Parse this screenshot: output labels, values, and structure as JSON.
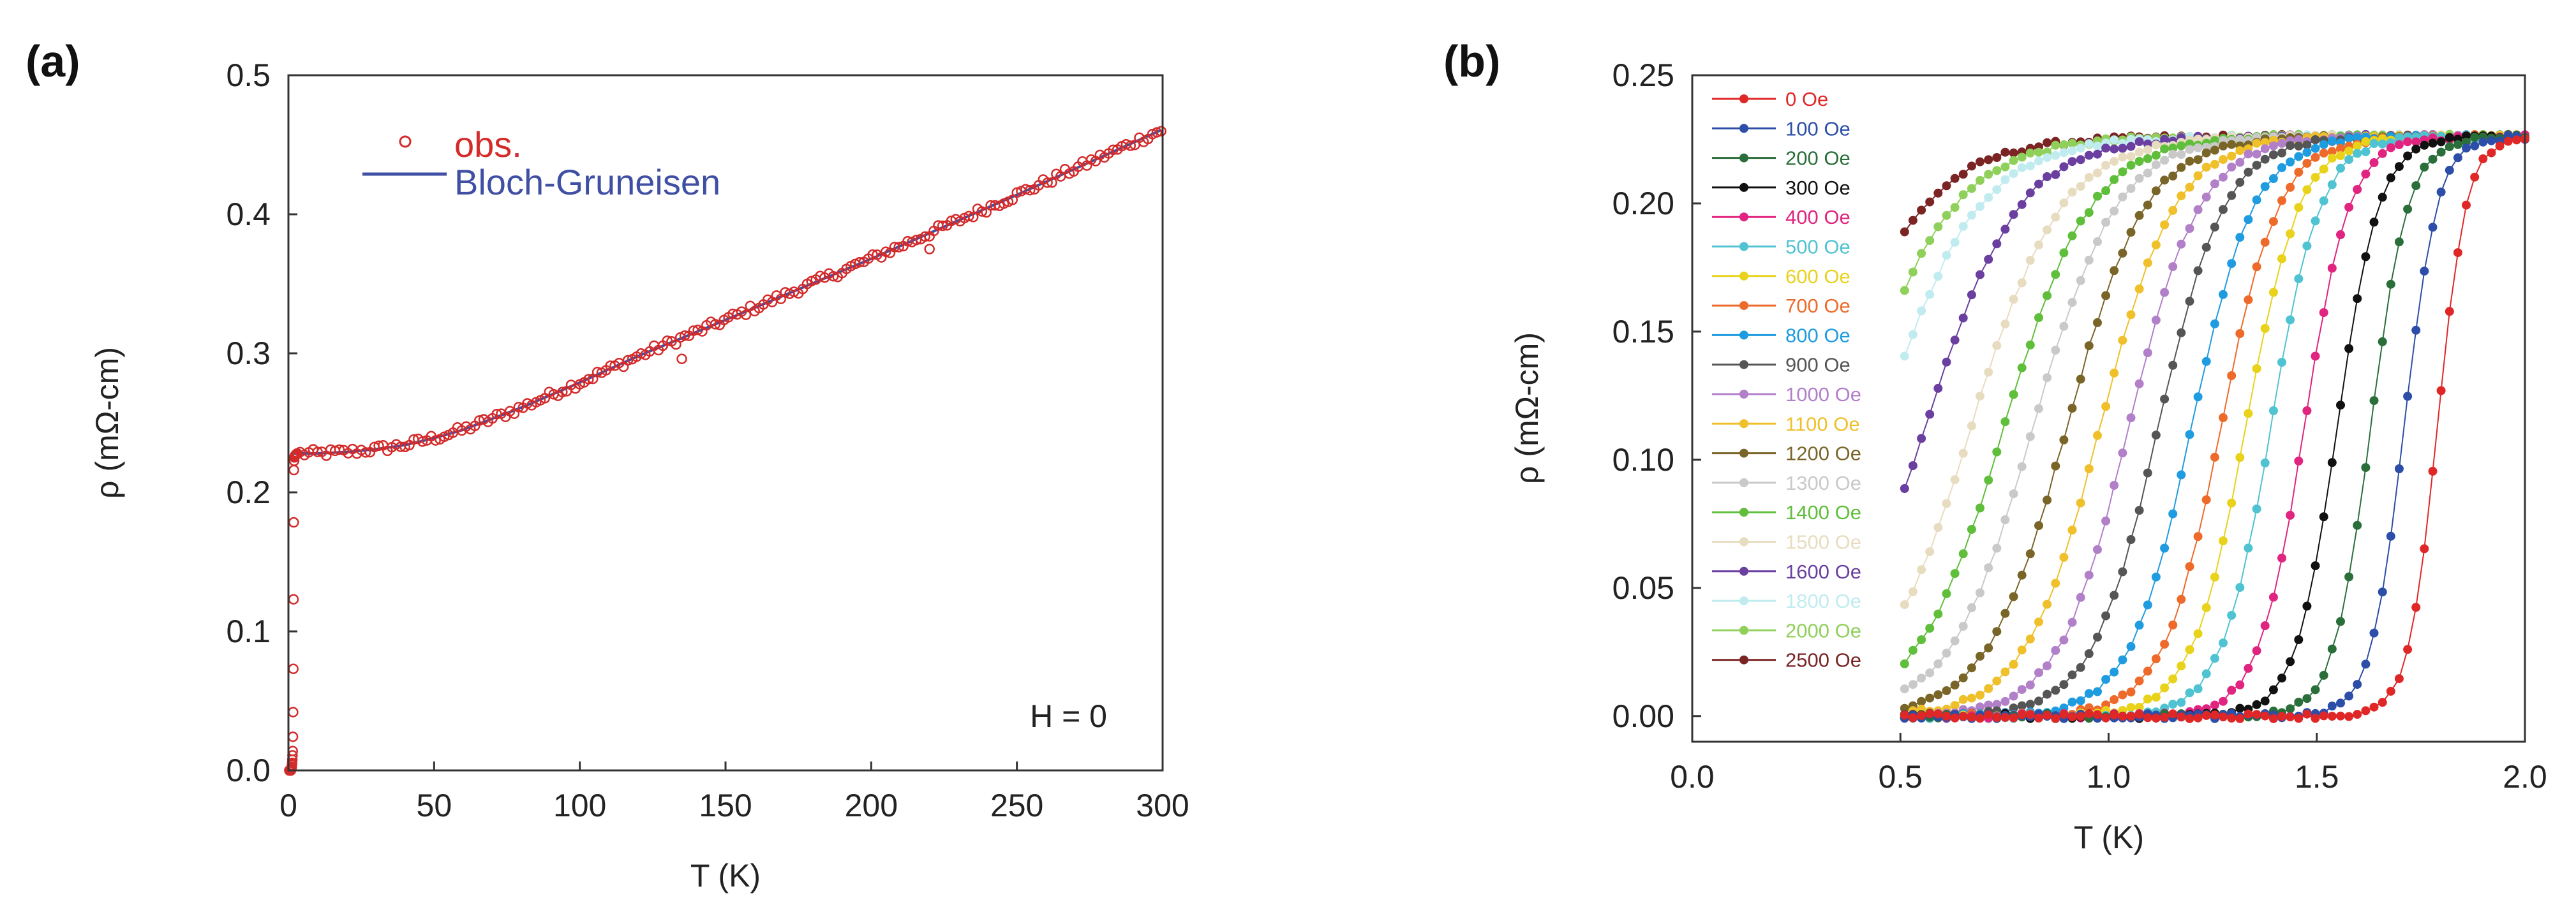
{
  "panel_labels": {
    "a": "(a)",
    "b": "(b)"
  },
  "chart_data": [
    {
      "type": "scatter",
      "panel": "(a)",
      "xlabel": "T (K)",
      "ylabel": "ρ (mΩ-cm)",
      "xlim": [
        0,
        300
      ],
      "ylim": [
        0.0,
        0.5
      ],
      "xticks": [
        "0",
        "50",
        "100",
        "150",
        "200",
        "250",
        "300"
      ],
      "yticks": [
        "0.0",
        "0.1",
        "0.2",
        "0.3",
        "0.4",
        "0.5"
      ],
      "annotation": "H = 0",
      "legend": {
        "obs": "obs.",
        "fit": "Bloch-Gruneisen"
      },
      "colors": {
        "obs": "#d42a2a",
        "fit": "#3f4fa3"
      },
      "fit_curve": {
        "x": [
          1.5,
          10,
          20,
          30,
          40,
          50,
          60,
          70,
          80,
          100,
          120,
          150,
          200,
          250,
          300
        ],
        "y": [
          0.228,
          0.228,
          0.229,
          0.231,
          0.234,
          0.239,
          0.245,
          0.253,
          0.261,
          0.279,
          0.298,
          0.324,
          0.368,
          0.414,
          0.461
        ]
      },
      "transition": {
        "x": [
          0.5,
          0.9,
          1.1,
          1.3,
          1.5,
          1.6,
          1.7,
          1.75,
          1.8,
          1.85,
          1.9,
          2.0,
          2.2,
          2.5,
          3.0
        ],
        "y": [
          0.0,
          0.0,
          0.002,
          0.006,
          0.015,
          0.035,
          0.08,
          0.12,
          0.16,
          0.2,
          0.219,
          0.225,
          0.226,
          0.227,
          0.228
        ]
      },
      "outliers": {
        "x": [
          135,
          220
        ],
        "y": [
          0.296,
          0.375
        ]
      }
    },
    {
      "type": "line",
      "panel": "(b)",
      "xlabel": "T (K)",
      "ylabel": "ρ (mΩ-cm)",
      "xlim": [
        0.0,
        2.0
      ],
      "ylim": [
        -0.01,
        0.25
      ],
      "xticks": [
        "0.0",
        "0.5",
        "1.0",
        "1.5",
        "2.0"
      ],
      "yticks": [
        "0.00",
        "0.05",
        "0.10",
        "0.15",
        "0.20",
        "0.25"
      ],
      "x_range": [
        0.51,
        2.0
      ],
      "rho_normal": 0.226,
      "series": [
        {
          "name": "0 Oe",
          "color": "#e02727",
          "tc": 1.79,
          "width": 0.035
        },
        {
          "name": "100 Oe",
          "color": "#2c4ea8",
          "tc": 1.71,
          "width": 0.04
        },
        {
          "name": "200 Oe",
          "color": "#2a6e3a",
          "tc": 1.63,
          "width": 0.045
        },
        {
          "name": "300 Oe",
          "color": "#111111",
          "tc": 1.55,
          "width": 0.05
        },
        {
          "name": "400 Oe",
          "color": "#e0247f",
          "tc": 1.47,
          "width": 0.055
        },
        {
          "name": "500 Oe",
          "color": "#4fc3d1",
          "tc": 1.39,
          "width": 0.06
        },
        {
          "name": "600 Oe",
          "color": "#e8d21a",
          "tc": 1.33,
          "width": 0.065
        },
        {
          "name": "700 Oe",
          "color": "#ee6a2a",
          "tc": 1.27,
          "width": 0.07
        },
        {
          "name": "800 Oe",
          "color": "#1f9be0",
          "tc": 1.2,
          "width": 0.075
        },
        {
          "name": "900 Oe",
          "color": "#555555",
          "tc": 1.12,
          "width": 0.08
        },
        {
          "name": "1000 Oe",
          "color": "#b27fc9",
          "tc": 1.05,
          "width": 0.085
        },
        {
          "name": "1100 Oe",
          "color": "#efc02a",
          "tc": 0.98,
          "width": 0.09
        },
        {
          "name": "1200 Oe",
          "color": "#7a6528",
          "tc": 0.9,
          "width": 0.095
        },
        {
          "name": "1300 Oe",
          "color": "#c9c9c9",
          "tc": 0.82,
          "width": 0.1
        },
        {
          "name": "1400 Oe",
          "color": "#5fbe3a",
          "tc": 0.75,
          "width": 0.105
        },
        {
          "name": "1500 Oe",
          "color": "#e8dcc0",
          "tc": 0.67,
          "width": 0.11
        },
        {
          "name": "1600 Oe",
          "color": "#6a3fa0",
          "tc": 0.56,
          "width": 0.115
        },
        {
          "name": "1800 Oe",
          "color": "#c0ecef",
          "tc": 0.45,
          "width": 0.12
        },
        {
          "name": "2000 Oe",
          "color": "#8fd05a",
          "tc": 0.38,
          "width": 0.125
        },
        {
          "name": "2500 Oe",
          "color": "#7a2424",
          "tc": 0.3,
          "width": 0.13
        }
      ]
    }
  ]
}
